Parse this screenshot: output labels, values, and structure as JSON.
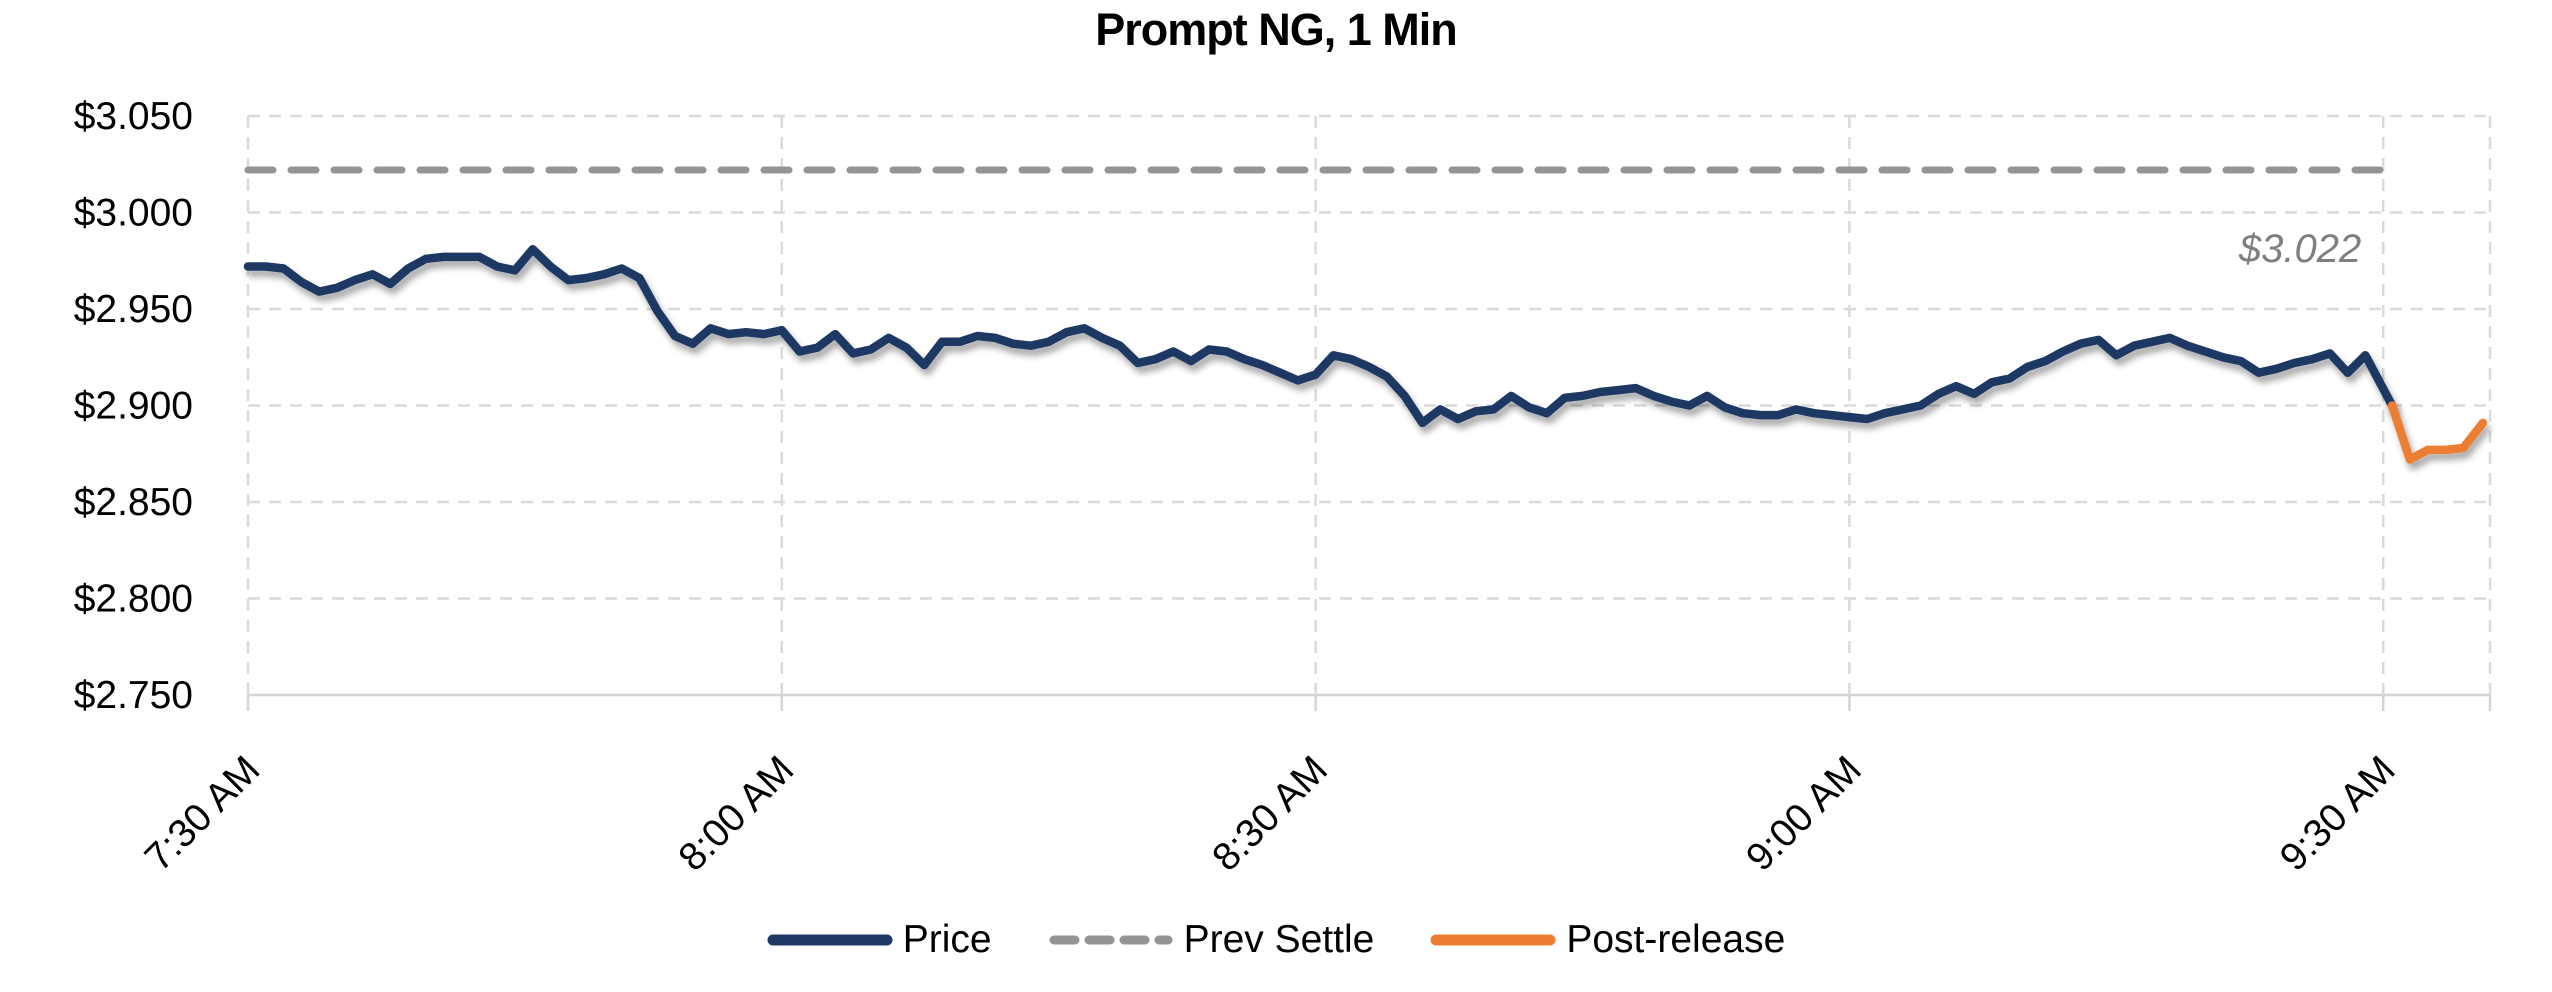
{
  "title": "Prompt NG, 1 Min",
  "palette": {
    "price": "#1F3864",
    "prev_settle": "#949494",
    "post_release": "#ED7D31",
    "gridline": "#DADADA",
    "axis_line": "#D4D4D4",
    "label_text": "#000000",
    "annotation_text": "#7F7F7F"
  },
  "chart_data": {
    "type": "line",
    "title": "Prompt NG, 1 Min",
    "legend_position": "bottom",
    "grid": true,
    "x_axis": {
      "unit": "minutes_after_7_30_AM",
      "end_minutes": 126,
      "tick_minutes": [
        0,
        30,
        60,
        90,
        120
      ],
      "tick_labels": [
        "7:30 AM",
        "8:00 AM",
        "8:30 AM",
        "9:00 AM",
        "9:30 AM"
      ],
      "label_rotation_deg": -45
    },
    "y_axis": {
      "min": 2.75,
      "max": 3.05,
      "step": 0.05,
      "tick_labels": [
        "$3.050",
        "$3.000",
        "$2.950",
        "$2.900",
        "$2.850",
        "$2.800",
        "$2.750"
      ],
      "tick_values": [
        3.05,
        3.0,
        2.95,
        2.9,
        2.85,
        2.8,
        2.75
      ]
    },
    "series": [
      {
        "name": "Price",
        "color": "#1F3864",
        "style": "solid",
        "points": [
          [
            0,
            2.972
          ],
          [
            1,
            2.972
          ],
          [
            2,
            2.971
          ],
          [
            3,
            2.964
          ],
          [
            4,
            2.959
          ],
          [
            5,
            2.961
          ],
          [
            6,
            2.965
          ],
          [
            7,
            2.968
          ],
          [
            8,
            2.963
          ],
          [
            9,
            2.971
          ],
          [
            10,
            2.976
          ],
          [
            11,
            2.977
          ],
          [
            12,
            2.977
          ],
          [
            13,
            2.977
          ],
          [
            14,
            2.972
          ],
          [
            15,
            2.97
          ],
          [
            16,
            2.981
          ],
          [
            17,
            2.972
          ],
          [
            18,
            2.965
          ],
          [
            19,
            2.966
          ],
          [
            20,
            2.968
          ],
          [
            21,
            2.971
          ],
          [
            22,
            2.966
          ],
          [
            23,
            2.949
          ],
          [
            24,
            2.936
          ],
          [
            25,
            2.932
          ],
          [
            26,
            2.94
          ],
          [
            27,
            2.937
          ],
          [
            28,
            2.938
          ],
          [
            29,
            2.937
          ],
          [
            30,
            2.939
          ],
          [
            31,
            2.928
          ],
          [
            32,
            2.93
          ],
          [
            33,
            2.937
          ],
          [
            34,
            2.927
          ],
          [
            35,
            2.929
          ],
          [
            36,
            2.935
          ],
          [
            37,
            2.93
          ],
          [
            38,
            2.921
          ],
          [
            39,
            2.933
          ],
          [
            40,
            2.933
          ],
          [
            41,
            2.936
          ],
          [
            42,
            2.935
          ],
          [
            43,
            2.932
          ],
          [
            44,
            2.931
          ],
          [
            45,
            2.933
          ],
          [
            46,
            2.938
          ],
          [
            47,
            2.94
          ],
          [
            48,
            2.935
          ],
          [
            49,
            2.931
          ],
          [
            50,
            2.922
          ],
          [
            51,
            2.924
          ],
          [
            52,
            2.928
          ],
          [
            53,
            2.923
          ],
          [
            54,
            2.929
          ],
          [
            55,
            2.928
          ],
          [
            56,
            2.924
          ],
          [
            57,
            2.921
          ],
          [
            58,
            2.917
          ],
          [
            59,
            2.913
          ],
          [
            60,
            2.916
          ],
          [
            61,
            2.926
          ],
          [
            62,
            2.924
          ],
          [
            63,
            2.92
          ],
          [
            64,
            2.915
          ],
          [
            65,
            2.905
          ],
          [
            66,
            2.891
          ],
          [
            67,
            2.898
          ],
          [
            68,
            2.893
          ],
          [
            69,
            2.897
          ],
          [
            70,
            2.898
          ],
          [
            71,
            2.905
          ],
          [
            72,
            2.899
          ],
          [
            73,
            2.896
          ],
          [
            74,
            2.904
          ],
          [
            75,
            2.905
          ],
          [
            76,
            2.907
          ],
          [
            77,
            2.908
          ],
          [
            78,
            2.909
          ],
          [
            79,
            2.905
          ],
          [
            80,
            2.902
          ],
          [
            81,
            2.9
          ],
          [
            82,
            2.905
          ],
          [
            83,
            2.899
          ],
          [
            84,
            2.896
          ],
          [
            85,
            2.895
          ],
          [
            86,
            2.895
          ],
          [
            87,
            2.898
          ],
          [
            88,
            2.896
          ],
          [
            89,
            2.895
          ],
          [
            90,
            2.894
          ],
          [
            91,
            2.893
          ],
          [
            92,
            2.896
          ],
          [
            93,
            2.898
          ],
          [
            94,
            2.9
          ],
          [
            95,
            2.906
          ],
          [
            96,
            2.91
          ],
          [
            97,
            2.906
          ],
          [
            98,
            2.912
          ],
          [
            99,
            2.914
          ],
          [
            100,
            2.92
          ],
          [
            101,
            2.923
          ],
          [
            102,
            2.928
          ],
          [
            103,
            2.932
          ],
          [
            104,
            2.934
          ],
          [
            105,
            2.926
          ],
          [
            106,
            2.931
          ],
          [
            107,
            2.933
          ],
          [
            108,
            2.935
          ],
          [
            109,
            2.931
          ],
          [
            110,
            2.928
          ],
          [
            111,
            2.925
          ],
          [
            112,
            2.923
          ],
          [
            113,
            2.917
          ],
          [
            114,
            2.919
          ],
          [
            115,
            2.922
          ],
          [
            116,
            2.924
          ],
          [
            117,
            2.927
          ],
          [
            118,
            2.917
          ],
          [
            119,
            2.926
          ],
          [
            120.5,
            2.9
          ]
        ]
      },
      {
        "name": "Prev Settle",
        "color": "#949494",
        "style": "dashed",
        "value": 3.022,
        "span_minutes": [
          0,
          120.6
        ],
        "annotation": "$3.022"
      },
      {
        "name": "Post-release",
        "color": "#ED7D31",
        "style": "solid",
        "points": [
          [
            120.5,
            2.9
          ],
          [
            121.5,
            2.872
          ],
          [
            122.5,
            2.877
          ],
          [
            123.5,
            2.877
          ],
          [
            124.5,
            2.878
          ],
          [
            125.6,
            2.891
          ]
        ]
      }
    ]
  }
}
